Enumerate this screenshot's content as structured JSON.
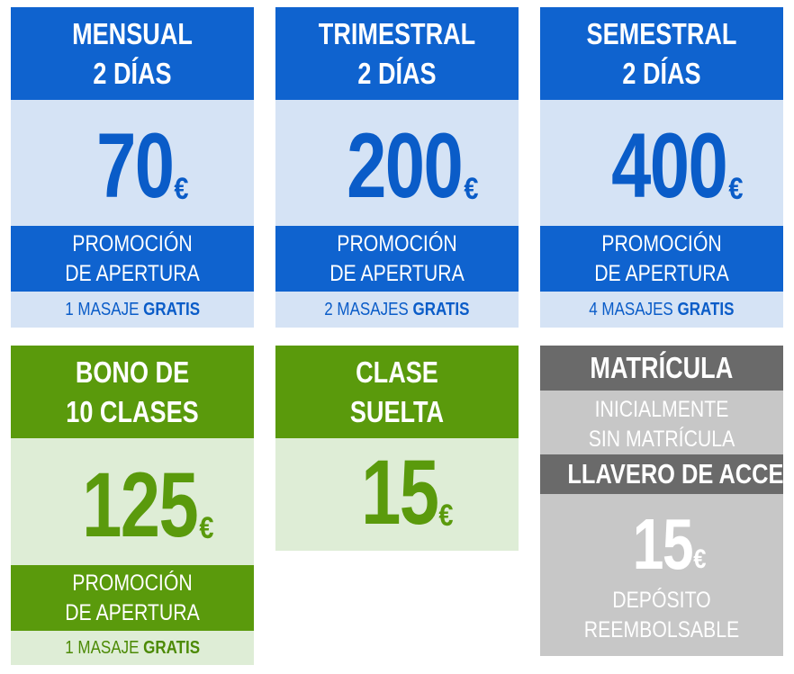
{
  "colors": {
    "blue_dark": "#0f63cf",
    "blue_light": "#d5e3f5",
    "green_dark": "#5a9a0c",
    "green_light": "#deedd6",
    "gray_dark": "#6a6a6a",
    "gray_light": "#c7c7c7"
  },
  "plans": [
    {
      "title_line1": "MENSUAL",
      "title_line2": "2 DÍAS",
      "price": "70",
      "currency": "€",
      "promo_line1": "PROMOCIÓN",
      "promo_line2": "DE APERTURA",
      "bonus_text": "1 MASAJE",
      "bonus_strong": "GRATIS"
    },
    {
      "title_line1": "TRIMESTRAL",
      "title_line2": "2 DÍAS",
      "price": "200",
      "currency": "€",
      "promo_line1": "PROMOCIÓN",
      "promo_line2": "DE APERTURA",
      "bonus_text": "2 MASAJES",
      "bonus_strong": "GRATIS"
    },
    {
      "title_line1": "SEMESTRAL",
      "title_line2": "2 DÍAS",
      "price": "400",
      "currency": "€",
      "promo_line1": "PROMOCIÓN",
      "promo_line2": "DE APERTURA",
      "bonus_text": "4 MASAJES",
      "bonus_strong": "GRATIS"
    },
    {
      "title_line1": "BONO DE",
      "title_line2": "10 CLASES",
      "price": "125",
      "currency": "€",
      "promo_line1": "PROMOCIÓN",
      "promo_line2": "DE APERTURA",
      "bonus_text": "1 MASAJE",
      "bonus_strong": "GRATIS"
    },
    {
      "title_line1": "CLASE",
      "title_line2": "SUELTA",
      "price": "15",
      "currency": "€"
    }
  ],
  "matricula": {
    "title": "MATRÍCULA",
    "note_line1": "INICIALMENTE",
    "note_line2": "SIN MATRÍCULA",
    "llavero_title": "LLAVERO DE ACCESO",
    "price": "15",
    "currency": "€",
    "deposit_line1": "DEPÓSITO",
    "deposit_line2": "REEMBOLSABLE"
  }
}
